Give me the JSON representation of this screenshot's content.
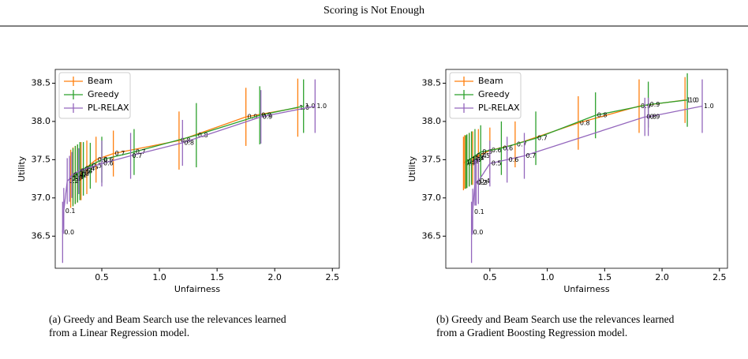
{
  "header": {
    "title": "Scoring is Not Enough"
  },
  "chart_data": [
    {
      "type": "line",
      "xlabel": "Unfairness",
      "ylabel": "Utility",
      "xlim": [
        0.096,
        2.56
      ],
      "ylim": [
        36.08,
        38.68
      ],
      "xticks": [
        0.5,
        {
          "value": 1,
          "label": "1.0"
        },
        1.5,
        {
          "value": 2,
          "label": "2.0"
        },
        2.5
      ],
      "yticks": [
        36.5,
        {
          "value": 37,
          "label": "37.0"
        },
        37.5,
        {
          "value": 38,
          "label": "38.0"
        },
        38.5
      ],
      "legend": "upper left",
      "series": [
        {
          "name": "Beam",
          "color": "#ff7f0e",
          "x": [
            0.23,
            0.25,
            0.27,
            0.29,
            0.32,
            0.37,
            0.45,
            0.6,
            1.17,
            1.75,
            2.2
          ],
          "values": [
            37.25,
            37.28,
            37.3,
            37.32,
            37.35,
            37.4,
            37.5,
            37.58,
            37.75,
            38.06,
            38.18
          ],
          "errors": [
            0.38,
            0.38,
            0.38,
            0.38,
            0.38,
            0.35,
            0.3,
            0.3,
            0.38,
            0.38,
            0.38
          ],
          "labels": [
            "0.0",
            "0.1",
            "0.2",
            "0.3",
            "0.4",
            "0.5",
            "0.6",
            "0.7",
            "0.8",
            "0.9",
            "1.0"
          ]
        },
        {
          "name": "Greedy",
          "color": "#2ca02c",
          "x": [
            0.25,
            0.27,
            0.29,
            0.31,
            0.34,
            0.4,
            0.5,
            0.78,
            1.32,
            1.87,
            2.25
          ],
          "values": [
            37.27,
            37.3,
            37.32,
            37.35,
            37.38,
            37.42,
            37.5,
            37.6,
            37.82,
            38.08,
            38.2
          ],
          "errors": [
            0.38,
            0.38,
            0.38,
            0.38,
            0.35,
            0.3,
            0.3,
            0.3,
            0.42,
            0.38,
            0.35
          ],
          "labels": [
            "0.0",
            "0.1",
            "0.2",
            "0.3",
            "0.4",
            "0.5",
            "0.6",
            "0.7",
            "0.8",
            "0.9",
            "1.0"
          ]
        },
        {
          "name": "PL-RELAX",
          "color": "#9467bd",
          "x": [
            0.16,
            0.17,
            0.2,
            0.22,
            0.24,
            0.3,
            0.5,
            0.75,
            1.2,
            1.88,
            2.35
          ],
          "values": [
            36.55,
            36.83,
            37.22,
            37.25,
            37.3,
            37.35,
            37.45,
            37.55,
            37.72,
            38.06,
            38.2
          ],
          "errors": [
            0.4,
            0.3,
            0.3,
            0.3,
            0.3,
            0.3,
            0.3,
            0.3,
            0.3,
            0.35,
            0.35
          ],
          "labels": [
            "0.0",
            "0.1",
            "0.2",
            "0.3",
            "0.4",
            "0.5",
            "0.6",
            "0.7",
            "0.8",
            "0.9",
            "1.0"
          ]
        }
      ],
      "caption": [
        "(a) Greedy and Beam Search use the relevances learned",
        "from a Linear Regression model."
      ]
    },
    {
      "type": "line",
      "xlabel": "Unfairness",
      "ylabel": "Utility",
      "xlim": [
        0.116,
        2.57
      ],
      "ylim": [
        36.08,
        38.68
      ],
      "xticks": [
        0.5,
        {
          "value": 1,
          "label": "1.0"
        },
        1.5,
        {
          "value": 2,
          "label": "2.0"
        },
        2.5
      ],
      "yticks": [
        36.5,
        {
          "value": 37,
          "label": "37.0"
        },
        37.5,
        {
          "value": 38,
          "label": "38.0"
        },
        38.5
      ],
      "legend": "upper left",
      "series": [
        {
          "name": "Beam",
          "color": "#ff7f0e",
          "x": [
            0.27,
            0.28,
            0.3,
            0.32,
            0.35,
            0.4,
            0.5,
            0.72,
            1.27,
            1.8,
            2.2
          ],
          "values": [
            37.45,
            37.47,
            37.48,
            37.5,
            37.52,
            37.55,
            37.62,
            37.7,
            37.98,
            38.2,
            38.28
          ],
          "errors": [
            0.35,
            0.35,
            0.35,
            0.35,
            0.35,
            0.35,
            0.3,
            0.3,
            0.35,
            0.35,
            0.3
          ],
          "labels": [
            "0.0",
            "0.1",
            "0.2",
            "0.3",
            "0.4",
            "0.5",
            "0.6",
            "0.7",
            "0.8",
            "0.9",
            "1.0"
          ]
        },
        {
          "name": "Greedy",
          "color": "#2ca02c",
          "x": [
            0.29,
            0.3,
            0.32,
            0.34,
            0.37,
            0.42,
            0.6,
            0.9,
            1.42,
            1.88,
            2.22
          ],
          "values": [
            37.47,
            37.48,
            37.5,
            37.52,
            37.55,
            37.6,
            37.65,
            37.78,
            38.08,
            38.22,
            38.28
          ],
          "errors": [
            0.35,
            0.35,
            0.35,
            0.35,
            0.35,
            0.35,
            0.35,
            0.35,
            0.3,
            0.3,
            0.35
          ],
          "labels": [
            "0.0",
            "0.1",
            "0.2",
            "0.3",
            "0.4",
            "0.5",
            "0.6",
            "0.7",
            "0.8",
            "0.9",
            "1.0"
          ]
        },
        {
          "name": "PL-RELAX",
          "color": "#9467bd",
          "x": [
            0.34,
            0.35,
            0.37,
            0.38,
            0.4,
            0.5,
            0.65,
            0.8,
            1.85,
            1.88,
            2.35
          ],
          "values": [
            36.55,
            36.82,
            37.2,
            37.2,
            37.22,
            37.45,
            37.5,
            37.55,
            38.06,
            38.06,
            38.2
          ],
          "errors": [
            0.4,
            0.3,
            0.3,
            0.3,
            0.3,
            0.3,
            0.3,
            0.3,
            0.25,
            0.25,
            0.35
          ],
          "labels": [
            "0.0",
            "0.1",
            "0.2",
            "0.3",
            "0.4",
            "0.5",
            "0.6",
            "0.7",
            "0.8",
            "0.9",
            "1.0"
          ]
        }
      ],
      "caption": [
        "(b) Greedy and Beam Search use the relevances learned",
        "from a Gradient Boosting Regression model."
      ]
    }
  ]
}
